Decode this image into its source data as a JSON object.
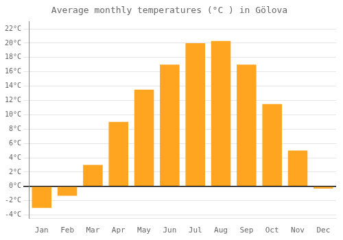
{
  "chart_data": {
    "type": "bar",
    "title": "Average monthly temperatures (°C ) in Gölova",
    "categories": [
      "Jan",
      "Feb",
      "Mar",
      "Apr",
      "May",
      "Jun",
      "Jul",
      "Aug",
      "Sep",
      "Oct",
      "Nov",
      "Dec"
    ],
    "values": [
      -3.0,
      -1.3,
      3.0,
      9.0,
      13.5,
      17.0,
      20.0,
      20.3,
      17.0,
      11.5,
      5.0,
      -0.3
    ],
    "color": "#FFA520",
    "ylim": [
      -4.5,
      23
    ],
    "yticks": [
      {
        "value": -4,
        "label": "-4°C"
      },
      {
        "value": -2,
        "label": "-2°C"
      },
      {
        "value": 0,
        "label": "0°C"
      },
      {
        "value": 2,
        "label": "2°C"
      },
      {
        "value": 4,
        "label": "4°C"
      },
      {
        "value": 6,
        "label": "6°C"
      },
      {
        "value": 8,
        "label": "8°C"
      },
      {
        "value": 10,
        "label": "10°C"
      },
      {
        "value": 12,
        "label": "12°C"
      },
      {
        "value": 14,
        "label": "14°C"
      },
      {
        "value": 16,
        "label": "16°C"
      },
      {
        "value": 18,
        "label": "18°C"
      },
      {
        "value": 20,
        "label": "20°C"
      },
      {
        "value": 22,
        "label": "22°C"
      }
    ],
    "grid": true
  }
}
